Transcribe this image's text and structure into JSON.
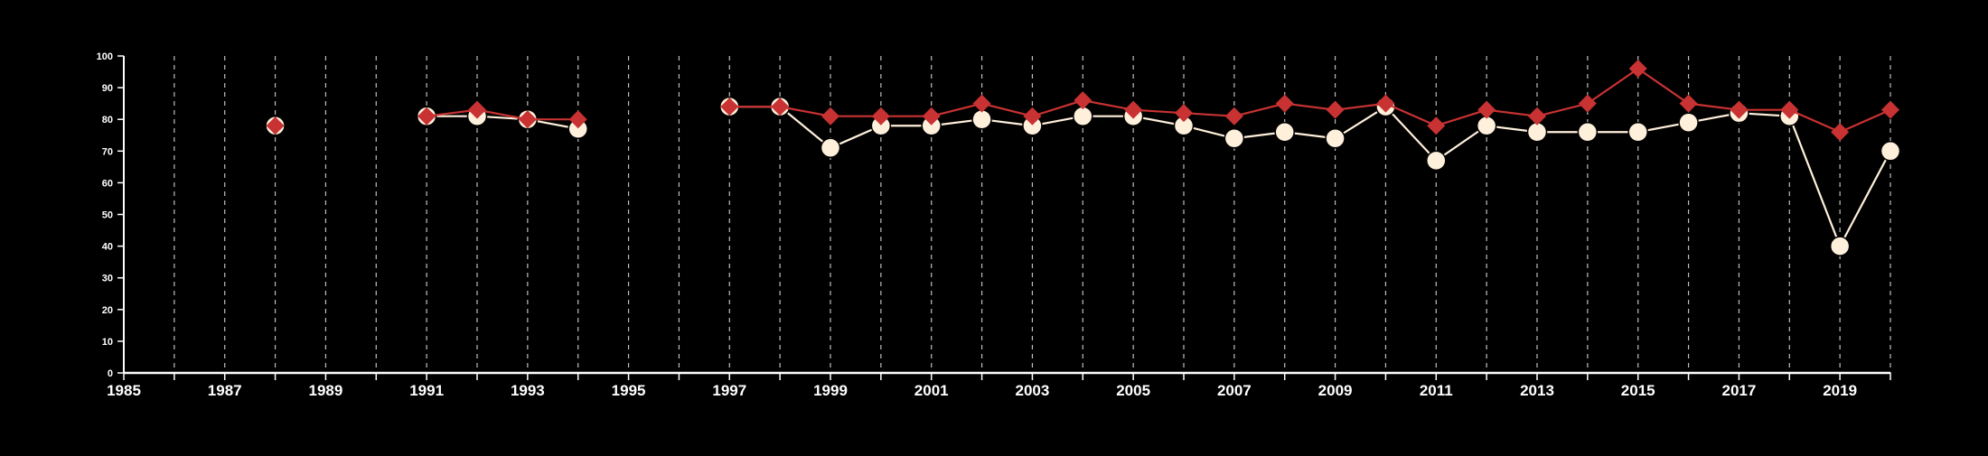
{
  "chart_data": {
    "type": "line",
    "title": "",
    "xlabel": "",
    "ylabel": "",
    "xlim": [
      1985,
      2020
    ],
    "ylim": [
      0,
      100
    ],
    "x_ticks": [
      1985,
      1987,
      1989,
      1991,
      1993,
      1995,
      1997,
      1999,
      2001,
      2003,
      2005,
      2007,
      2009,
      2011,
      2013,
      2015,
      2017,
      2019
    ],
    "y_ticks": [
      0,
      10,
      20,
      30,
      40,
      50,
      60,
      70,
      80,
      90,
      100
    ],
    "grid": "vertical dashed, every year",
    "legend": "none",
    "series": [
      {
        "color": "#FFF0DC",
        "marker": "circle",
        "points": [
          {
            "x": 1988,
            "y": 78
          },
          {
            "x": 1991,
            "y": 81
          },
          {
            "x": 1992,
            "y": 81
          },
          {
            "x": 1993,
            "y": 80
          },
          {
            "x": 1994,
            "y": 77
          },
          {
            "x": 1997,
            "y": 84
          },
          {
            "x": 1998,
            "y": 84
          },
          {
            "x": 1999,
            "y": 71
          },
          {
            "x": 2000,
            "y": 78
          },
          {
            "x": 2001,
            "y": 78
          },
          {
            "x": 2002,
            "y": 80
          },
          {
            "x": 2003,
            "y": 78
          },
          {
            "x": 2004,
            "y": 81
          },
          {
            "x": 2005,
            "y": 81
          },
          {
            "x": 2006,
            "y": 78
          },
          {
            "x": 2007,
            "y": 74
          },
          {
            "x": 2008,
            "y": 76
          },
          {
            "x": 2009,
            "y": 74
          },
          {
            "x": 2010,
            "y": 84
          },
          {
            "x": 2011,
            "y": 67
          },
          {
            "x": 2012,
            "y": 78
          },
          {
            "x": 2013,
            "y": 76
          },
          {
            "x": 2014,
            "y": 76
          },
          {
            "x": 2015,
            "y": 76
          },
          {
            "x": 2016,
            "y": 79
          },
          {
            "x": 2017,
            "y": 82
          },
          {
            "x": 2018,
            "y": 81
          },
          {
            "x": 2019,
            "y": 40
          },
          {
            "x": 2020,
            "y": 70
          }
        ]
      },
      {
        "color": "#C83232",
        "marker": "diamond",
        "points": [
          {
            "x": 1988,
            "y": 78
          },
          {
            "x": 1991,
            "y": 81
          },
          {
            "x": 1992,
            "y": 83
          },
          {
            "x": 1993,
            "y": 80
          },
          {
            "x": 1994,
            "y": 80
          },
          {
            "x": 1997,
            "y": 84
          },
          {
            "x": 1998,
            "y": 84
          },
          {
            "x": 1999,
            "y": 81
          },
          {
            "x": 2000,
            "y": 81
          },
          {
            "x": 2001,
            "y": 81
          },
          {
            "x": 2002,
            "y": 85
          },
          {
            "x": 2003,
            "y": 81
          },
          {
            "x": 2004,
            "y": 86
          },
          {
            "x": 2005,
            "y": 83
          },
          {
            "x": 2006,
            "y": 82
          },
          {
            "x": 2007,
            "y": 81
          },
          {
            "x": 2008,
            "y": 85
          },
          {
            "x": 2009,
            "y": 83
          },
          {
            "x": 2010,
            "y": 85
          },
          {
            "x": 2011,
            "y": 78
          },
          {
            "x": 2012,
            "y": 83
          },
          {
            "x": 2013,
            "y": 81
          },
          {
            "x": 2014,
            "y": 85
          },
          {
            "x": 2015,
            "y": 96
          },
          {
            "x": 2016,
            "y": 85
          },
          {
            "x": 2017,
            "y": 83
          },
          {
            "x": 2018,
            "y": 83
          },
          {
            "x": 2019,
            "y": 76
          },
          {
            "x": 2020,
            "y": 83
          }
        ]
      }
    ],
    "colors": {
      "background": "#000000",
      "axis": "#FFFFFF",
      "grid": "#BFBFBF"
    }
  }
}
